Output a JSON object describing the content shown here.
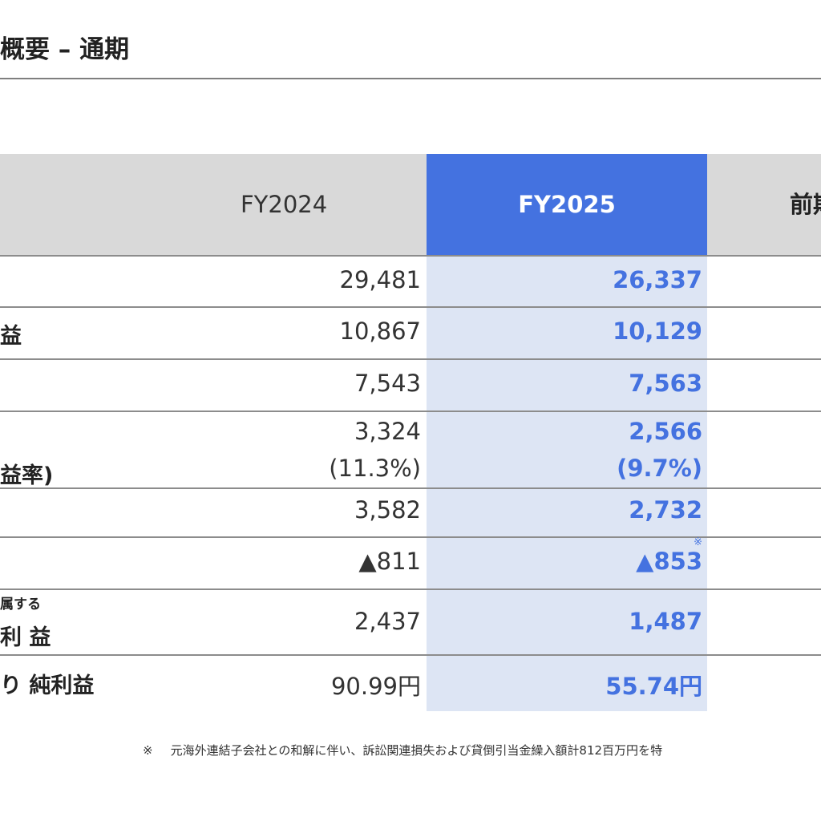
{
  "page": {
    "title": "概要 – 通期"
  },
  "table": {
    "headers": {
      "fy2024": "FY2024",
      "fy2025": "FY2025",
      "prev": "前期"
    },
    "rows": [
      {
        "label": "",
        "fy2024": "29,481",
        "fy2025": "26,337"
      },
      {
        "label": "益",
        "fy2024": "10,867",
        "fy2025": "10,129"
      },
      {
        "label": "",
        "fy2024": "7,543",
        "fy2025": "7,563"
      },
      {
        "label": "益率)",
        "fy2024": "3,324",
        "fy2024_sub": "(11.3%)",
        "fy2025": "2,566",
        "fy2025_sub": "(9.7%)"
      },
      {
        "label": "",
        "fy2024": "3,582",
        "fy2025": "2,732"
      },
      {
        "label": "",
        "fy2024": "▲811",
        "fy2025": "▲853",
        "fy2025_mark": "※"
      },
      {
        "label_small": "属する",
        "label": "利 益",
        "fy2024": "2,437",
        "fy2025": "1,487"
      },
      {
        "label": "り 純利益",
        "fy2024": "90.99円",
        "fy2025": "55.74円"
      }
    ]
  },
  "footnote": {
    "symbol": "※",
    "text": "元海外連結子会社との和解に伴い、訴訟関連損失および貸倒引当金繰入額計812百万円を特"
  },
  "colors": {
    "accent": "#4472e0",
    "header_gray": "#d9d9d9",
    "highlight_column": "#dde5f4"
  }
}
